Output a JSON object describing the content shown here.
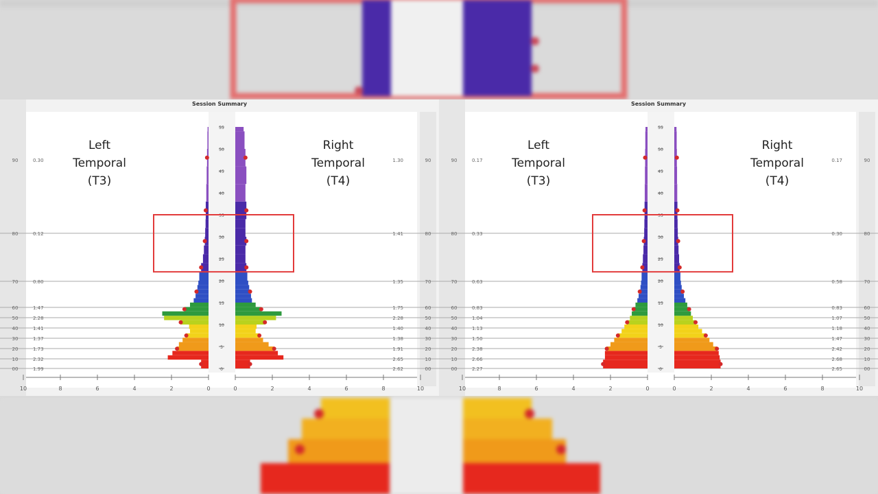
{
  "colors": {
    "violet": "#8a4fc0",
    "indigo": "#4a2aa8",
    "blue": "#2f4fc4",
    "green": "#2e9a3e",
    "lime": "#b8d21e",
    "yellow": "#f2d21a",
    "orange": "#f09a1a",
    "red": "#e6281e",
    "dot": "#d42a2a",
    "highlight_box": "#e23a3a"
  },
  "chart_data": [
    {
      "type": "bar",
      "title": "Session Summary",
      "left_label": [
        "Left",
        "Temporal",
        "(T3)"
      ],
      "right_label": [
        "Right",
        "Temporal",
        "(T4)"
      ],
      "y_ticks": [
        0,
        5,
        10,
        15,
        20,
        25,
        30,
        35,
        40,
        45,
        50,
        55
      ],
      "x_ticks_left": [
        "10",
        "8",
        "6",
        "4",
        "2",
        "0"
      ],
      "x_ticks_right": [
        "0",
        "2",
        "4",
        "6",
        "8",
        "10"
      ],
      "highlight_range": [
        22,
        35
      ],
      "bands": [
        {
          "tick": "90",
          "left_val": "0.30",
          "right_val": "1.30"
        },
        {
          "tick": "80",
          "left_val": "0.12",
          "right_val": "1.41"
        },
        {
          "tick": "70",
          "left_val": "0.80",
          "right_val": "1.35"
        },
        {
          "tick": "60",
          "left_val": "1.47",
          "right_val": "1.75"
        },
        {
          "tick": "50",
          "left_val": "2.28",
          "right_val": "2.28"
        },
        {
          "tick": "40",
          "left_val": "1.41",
          "right_val": "1.40"
        },
        {
          "tick": "30",
          "left_val": "1.37",
          "right_val": "1.38"
        },
        {
          "tick": "20",
          "left_val": "1.73",
          "right_val": "1.91"
        },
        {
          "tick": "10",
          "left_val": "2.32",
          "right_val": "2.65"
        },
        {
          "tick": "00",
          "left_val": "1.99",
          "right_val": "2.62"
        }
      ],
      "freq": [
        1,
        2,
        3,
        4,
        5,
        6,
        7,
        8,
        9,
        10,
        11,
        12,
        13,
        14,
        15,
        16,
        17,
        18,
        19,
        20,
        22,
        24,
        26,
        28,
        30,
        32,
        34,
        38,
        42,
        46,
        50,
        54
      ],
      "left_values": [
        0.4,
        2.2,
        1.95,
        1.7,
        1.6,
        1.4,
        1.2,
        1.0,
        1.05,
        1.5,
        2.4,
        2.5,
        1.3,
        1.0,
        0.8,
        0.7,
        0.65,
        0.6,
        0.55,
        0.5,
        0.4,
        0.3,
        0.25,
        0.2,
        0.18,
        0.16,
        0.15,
        0.12,
        0.1,
        0.08,
        0.06,
        0.05
      ],
      "right_values": [
        0.8,
        2.6,
        2.3,
        2.1,
        1.8,
        1.5,
        1.3,
        1.1,
        1.15,
        1.6,
        2.2,
        2.5,
        1.4,
        1.1,
        0.9,
        0.85,
        0.8,
        0.75,
        0.7,
        0.65,
        0.6,
        0.55,
        0.55,
        0.6,
        0.55,
        0.55,
        0.6,
        0.55,
        0.6,
        0.55,
        0.5,
        0.45
      ]
    },
    {
      "type": "bar",
      "title": "Session Summary",
      "left_label": [
        "Left",
        "Temporal",
        "(T3)"
      ],
      "right_label": [
        "Right",
        "Temporal",
        "(T4)"
      ],
      "y_ticks": [
        0,
        5,
        10,
        15,
        20,
        25,
        30,
        35,
        40,
        45,
        50,
        55
      ],
      "x_ticks_left": [
        "10",
        "8",
        "6",
        "4",
        "2",
        "0"
      ],
      "x_ticks_right": [
        "0",
        "2",
        "4",
        "6",
        "8",
        "10"
      ],
      "highlight_range": [
        22,
        35
      ],
      "bands": [
        {
          "tick": "90",
          "left_val": "0.17",
          "right_val": "0.17"
        },
        {
          "tick": "80",
          "left_val": "0.33",
          "right_val": "0.30"
        },
        {
          "tick": "70",
          "left_val": "0.63",
          "right_val": "0.58"
        },
        {
          "tick": "60",
          "left_val": "0.83",
          "right_val": "0.83"
        },
        {
          "tick": "50",
          "left_val": "1.04",
          "right_val": "1.07"
        },
        {
          "tick": "40",
          "left_val": "1.13",
          "right_val": "1.18"
        },
        {
          "tick": "30",
          "left_val": "1.50",
          "right_val": "1.47"
        },
        {
          "tick": "20",
          "left_val": "2.38",
          "right_val": "2.42"
        },
        {
          "tick": "10",
          "left_val": "2.66",
          "right_val": "2.68"
        },
        {
          "tick": "00",
          "left_val": "2.27",
          "right_val": "2.65"
        }
      ],
      "freq": [
        1,
        2,
        3,
        4,
        5,
        6,
        7,
        8,
        9,
        10,
        11,
        12,
        13,
        14,
        15,
        16,
        17,
        18,
        19,
        20,
        22,
        24,
        26,
        28,
        30,
        32,
        34,
        38,
        42,
        46,
        50,
        54
      ],
      "left_values": [
        2.4,
        2.3,
        2.3,
        2.2,
        2.0,
        1.8,
        1.6,
        1.4,
        1.25,
        1.1,
        0.95,
        0.85,
        0.75,
        0.65,
        0.55,
        0.48,
        0.42,
        0.38,
        0.35,
        0.32,
        0.28,
        0.25,
        0.22,
        0.2,
        0.18,
        0.17,
        0.16,
        0.15,
        0.14,
        0.13,
        0.12,
        0.11
      ],
      "right_values": [
        2.5,
        2.45,
        2.4,
        2.3,
        2.1,
        1.9,
        1.7,
        1.5,
        1.3,
        1.15,
        1.0,
        0.9,
        0.8,
        0.7,
        0.6,
        0.52,
        0.45,
        0.4,
        0.36,
        0.33,
        0.29,
        0.26,
        0.23,
        0.21,
        0.19,
        0.18,
        0.17,
        0.16,
        0.15,
        0.14,
        0.13,
        0.12
      ]
    }
  ]
}
